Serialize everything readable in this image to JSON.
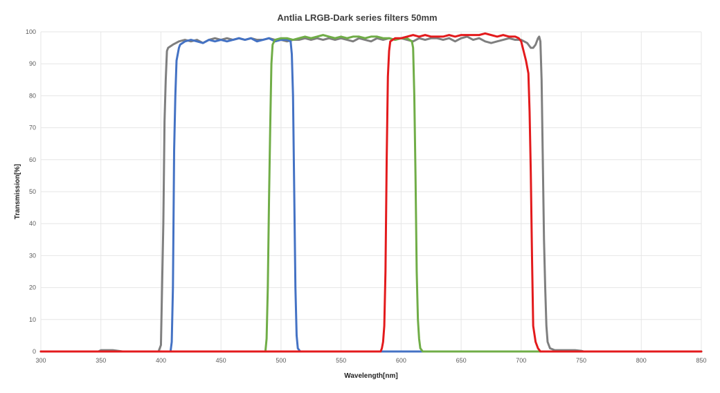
{
  "chart_data": {
    "type": "line",
    "title": "Antlia LRGB-Dark series filters 50mm",
    "xlabel": "Wavelength[nm]",
    "ylabel": "Transmission[%]",
    "xlim": [
      300,
      850
    ],
    "ylim": [
      0,
      100
    ],
    "x_ticks": [
      300,
      350,
      400,
      450,
      500,
      550,
      600,
      650,
      700,
      750,
      800,
      850
    ],
    "y_ticks": [
      0,
      10,
      20,
      30,
      40,
      50,
      60,
      70,
      80,
      90,
      100
    ],
    "grid": true,
    "legend": "none",
    "series": [
      {
        "color": "#7f7f7f",
        "points": [
          [
            300,
            0
          ],
          [
            348,
            0
          ],
          [
            350,
            0.4
          ],
          [
            360,
            0.4
          ],
          [
            368,
            0
          ],
          [
            398,
            0
          ],
          [
            400,
            2
          ],
          [
            402,
            40
          ],
          [
            403,
            72
          ],
          [
            404,
            85
          ],
          [
            405,
            94
          ],
          [
            406,
            95
          ],
          [
            410,
            96
          ],
          [
            415,
            97
          ],
          [
            420,
            97.5
          ],
          [
            425,
            97
          ],
          [
            430,
            97.5
          ],
          [
            435,
            96.5
          ],
          [
            440,
            97.5
          ],
          [
            445,
            98
          ],
          [
            450,
            97.5
          ],
          [
            455,
            98
          ],
          [
            460,
            97.5
          ],
          [
            465,
            98
          ],
          [
            470,
            97.5
          ],
          [
            475,
            98
          ],
          [
            480,
            97.5
          ],
          [
            485,
            97.5
          ],
          [
            490,
            98
          ],
          [
            495,
            97.5
          ],
          [
            500,
            97.5
          ],
          [
            505,
            97
          ],
          [
            510,
            97.5
          ],
          [
            515,
            97.5
          ],
          [
            520,
            98
          ],
          [
            525,
            97.5
          ],
          [
            530,
            98
          ],
          [
            535,
            97.5
          ],
          [
            540,
            98
          ],
          [
            545,
            97.5
          ],
          [
            550,
            98
          ],
          [
            555,
            97.5
          ],
          [
            560,
            97
          ],
          [
            565,
            98
          ],
          [
            570,
            97.5
          ],
          [
            575,
            97
          ],
          [
            580,
            98
          ],
          [
            585,
            97.5
          ],
          [
            590,
            98
          ],
          [
            595,
            97.5
          ],
          [
            600,
            98
          ],
          [
            605,
            97.5
          ],
          [
            610,
            97
          ],
          [
            615,
            98
          ],
          [
            620,
            97.5
          ],
          [
            625,
            98
          ],
          [
            630,
            98
          ],
          [
            635,
            97.5
          ],
          [
            640,
            98
          ],
          [
            645,
            97
          ],
          [
            650,
            98
          ],
          [
            655,
            98.5
          ],
          [
            660,
            97.5
          ],
          [
            665,
            98
          ],
          [
            670,
            97
          ],
          [
            675,
            96.5
          ],
          [
            680,
            97
          ],
          [
            685,
            97.5
          ],
          [
            690,
            98
          ],
          [
            695,
            97.5
          ],
          [
            700,
            97.5
          ],
          [
            705,
            96.5
          ],
          [
            708,
            95
          ],
          [
            710,
            95
          ],
          [
            712,
            96
          ],
          [
            714,
            98
          ],
          [
            715,
            98.5
          ],
          [
            716,
            97
          ],
          [
            717,
            85
          ],
          [
            718,
            60
          ],
          [
            719,
            35
          ],
          [
            720,
            20
          ],
          [
            721,
            8
          ],
          [
            722,
            3
          ],
          [
            724,
            1
          ],
          [
            728,
            0.4
          ],
          [
            745,
            0.4
          ],
          [
            750,
            0.2
          ],
          [
            752,
            0
          ],
          [
            850,
            0
          ]
        ]
      },
      {
        "color": "#4472c4",
        "points": [
          [
            300,
            0
          ],
          [
            408,
            0
          ],
          [
            409,
            3
          ],
          [
            410,
            20
          ],
          [
            411,
            63
          ],
          [
            412,
            80
          ],
          [
            413,
            91
          ],
          [
            414,
            93
          ],
          [
            415,
            95
          ],
          [
            416,
            96
          ],
          [
            420,
            97
          ],
          [
            425,
            97.5
          ],
          [
            430,
            97
          ],
          [
            435,
            96.5
          ],
          [
            440,
            97.5
          ],
          [
            445,
            97
          ],
          [
            450,
            97.5
          ],
          [
            455,
            97
          ],
          [
            460,
            97.5
          ],
          [
            465,
            98
          ],
          [
            470,
            97.5
          ],
          [
            475,
            98
          ],
          [
            480,
            97
          ],
          [
            485,
            97.5
          ],
          [
            490,
            98
          ],
          [
            495,
            97
          ],
          [
            500,
            97.5
          ],
          [
            505,
            97.5
          ],
          [
            508,
            97
          ],
          [
            509,
            93
          ],
          [
            510,
            80
          ],
          [
            511,
            50
          ],
          [
            512,
            20
          ],
          [
            513,
            5
          ],
          [
            514,
            1
          ],
          [
            516,
            0
          ],
          [
            850,
            0
          ]
        ]
      },
      {
        "color": "#70ad47",
        "points": [
          [
            300,
            0
          ],
          [
            487,
            0
          ],
          [
            488,
            4
          ],
          [
            489,
            20
          ],
          [
            490,
            47
          ],
          [
            491,
            70
          ],
          [
            492,
            90
          ],
          [
            493,
            96
          ],
          [
            495,
            97.5
          ],
          [
            500,
            98
          ],
          [
            505,
            98
          ],
          [
            510,
            97.5
          ],
          [
            515,
            98
          ],
          [
            520,
            98.5
          ],
          [
            525,
            98
          ],
          [
            530,
            98.5
          ],
          [
            535,
            99
          ],
          [
            540,
            98.5
          ],
          [
            545,
            98
          ],
          [
            550,
            98.5
          ],
          [
            555,
            98
          ],
          [
            560,
            98.5
          ],
          [
            565,
            98.5
          ],
          [
            570,
            98
          ],
          [
            575,
            98.5
          ],
          [
            580,
            98.5
          ],
          [
            585,
            98
          ],
          [
            590,
            98
          ],
          [
            595,
            97.5
          ],
          [
            600,
            98
          ],
          [
            605,
            98
          ],
          [
            609,
            97
          ],
          [
            610,
            95
          ],
          [
            611,
            80
          ],
          [
            612,
            55
          ],
          [
            613,
            25
          ],
          [
            614,
            10
          ],
          [
            615,
            4
          ],
          [
            616,
            1
          ],
          [
            618,
            0
          ],
          [
            850,
            0
          ]
        ]
      },
      {
        "color": "#e31a1c",
        "points": [
          [
            300,
            0
          ],
          [
            583,
            0
          ],
          [
            584,
            1
          ],
          [
            585,
            3
          ],
          [
            586,
            8
          ],
          [
            587,
            25
          ],
          [
            588,
            60
          ],
          [
            589,
            86
          ],
          [
            590,
            94
          ],
          [
            591,
            97
          ],
          [
            595,
            98
          ],
          [
            600,
            98
          ],
          [
            605,
            98.5
          ],
          [
            610,
            99
          ],
          [
            615,
            98.5
          ],
          [
            620,
            99
          ],
          [
            625,
            98.5
          ],
          [
            630,
            98.5
          ],
          [
            635,
            98.5
          ],
          [
            640,
            99
          ],
          [
            645,
            98.5
          ],
          [
            650,
            99
          ],
          [
            655,
            99
          ],
          [
            660,
            99
          ],
          [
            665,
            99
          ],
          [
            670,
            99.5
          ],
          [
            675,
            99
          ],
          [
            680,
            98.5
          ],
          [
            685,
            99
          ],
          [
            690,
            98.5
          ],
          [
            695,
            98.5
          ],
          [
            698,
            98
          ],
          [
            700,
            97
          ],
          [
            702,
            94
          ],
          [
            704,
            91
          ],
          [
            706,
            87
          ],
          [
            707,
            75
          ],
          [
            708,
            56
          ],
          [
            709,
            30
          ],
          [
            710,
            8
          ],
          [
            712,
            3
          ],
          [
            714,
            1
          ],
          [
            716,
            0
          ],
          [
            850,
            0
          ]
        ]
      }
    ]
  }
}
